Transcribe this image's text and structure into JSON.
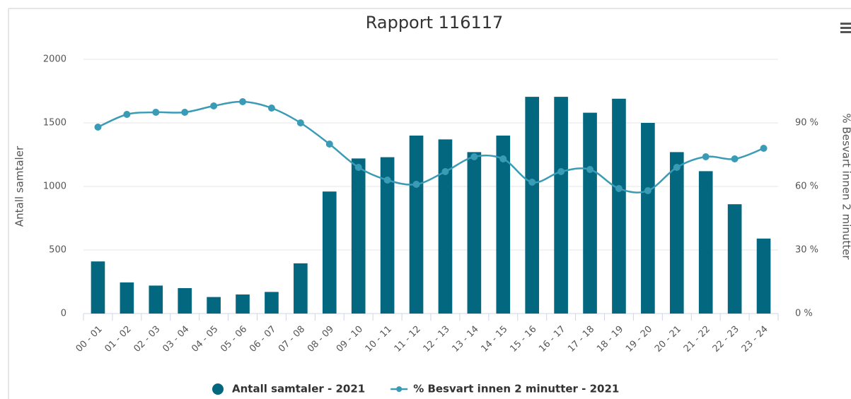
{
  "chart_data": {
    "type": "bar-line",
    "title": "Rapport 116117",
    "ylabel": "Antall samtaler",
    "y2label": "% Besvart innen 2 minutter",
    "categories": [
      "00 - 01",
      "01 - 02",
      "02 - 03",
      "03 - 04",
      "04 - 05",
      "05 - 06",
      "06 - 07",
      "07 - 08",
      "08 - 09",
      "09 - 10",
      "10 - 11",
      "11 - 12",
      "12 - 13",
      "13 - 14",
      "14 - 15",
      "15 - 16",
      "16 - 17",
      "17 - 18",
      "18 - 19",
      "19 - 20",
      "20 - 21",
      "21 - 22",
      "22 - 23",
      "23 - 24"
    ],
    "series": [
      {
        "name": "Antall samtaler - 2021",
        "type": "bar",
        "color": "#02677f",
        "axis": "y",
        "values": [
          410,
          245,
          220,
          200,
          130,
          150,
          170,
          395,
          960,
          1220,
          1230,
          1400,
          1370,
          1270,
          1400,
          1705,
          1705,
          1580,
          1690,
          1500,
          1270,
          1120,
          860,
          590
        ]
      },
      {
        "name": "% Besvart innen 2 minutter - 2021",
        "type": "line",
        "color": "#3a9bb7",
        "axis": "y2",
        "values": [
          88,
          94,
          95,
          95,
          98,
          100,
          97,
          90,
          80,
          69,
          63,
          61,
          67,
          74,
          73,
          62,
          67,
          68,
          59,
          58,
          69,
          74,
          73,
          78
        ]
      }
    ],
    "ylim": [
      0,
      2000
    ],
    "yticks": [
      0,
      500,
      1000,
      1500,
      2000
    ],
    "y2lim": [
      0,
      120
    ],
    "y2ticks": [
      {
        "value": 0,
        "label": "0 %"
      },
      {
        "value": 30,
        "label": "30 %"
      },
      {
        "value": 60,
        "label": "60 %"
      },
      {
        "value": 90,
        "label": "90 %"
      }
    ],
    "grid": true,
    "legend": "bottom"
  }
}
